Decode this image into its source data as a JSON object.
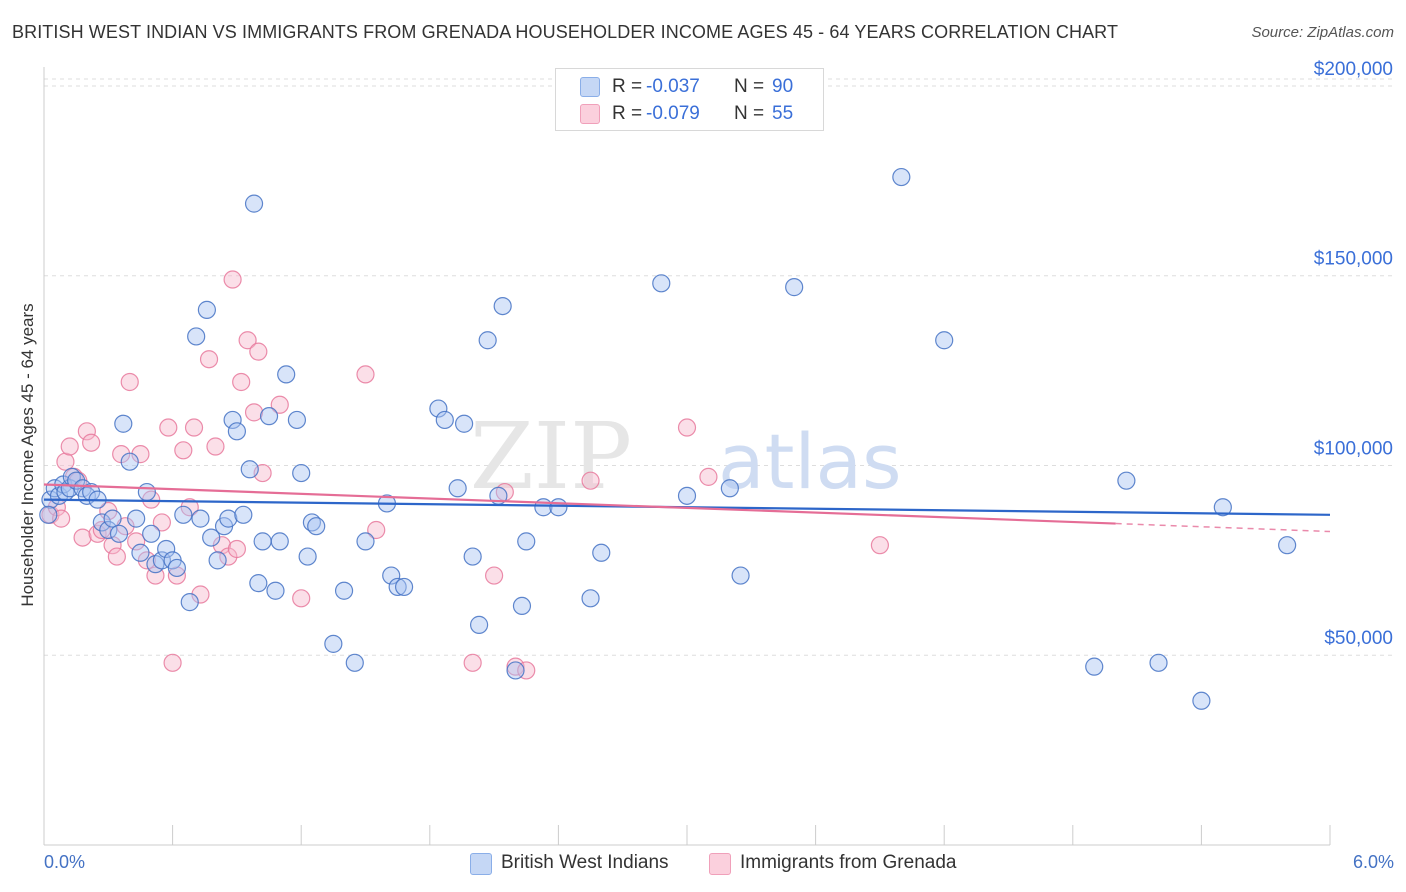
{
  "title": "BRITISH WEST INDIAN VS IMMIGRANTS FROM GRENADA HOUSEHOLDER INCOME AGES 45 - 64 YEARS CORRELATION CHART",
  "source": "Source: ZipAtlas.com",
  "watermark": {
    "zip": "ZIP",
    "atlas": "atlas"
  },
  "colors": {
    "blue": "#4472c4",
    "blue_fill": "#a9c4f2",
    "blue_line": "#2d66c9",
    "pink": "#e8799c",
    "pink_fill": "#f6b8cc",
    "pink_line": "#e56d96",
    "grid": "#dddddd",
    "value_text": "#3a6fd8"
  },
  "legend": {
    "series1": {
      "r_label": "R =",
      "r_value": "-0.037",
      "n_label": "N =",
      "n_value": "90"
    },
    "series2": {
      "r_label": "R =",
      "r_value": "-0.079",
      "n_label": "N =",
      "n_value": "55"
    }
  },
  "bottom_legend": {
    "series1": "British West Indians",
    "series2": "Immigrants from Grenada"
  },
  "chart_data": {
    "type": "scatter",
    "title": "BRITISH WEST INDIAN VS IMMIGRANTS FROM GRENADA HOUSEHOLDER INCOME AGES 45 - 64 YEARS CORRELATION CHART",
    "xlabel": "",
    "ylabel": "Householder Income Ages 45 - 64 years",
    "xlim": [
      0,
      6
    ],
    "ylim": [
      0,
      205000
    ],
    "x_tick_labels": [
      "0.0%",
      "6.0%"
    ],
    "y_ticks": [
      {
        "value": 50000,
        "label": "$50,000"
      },
      {
        "value": 100000,
        "label": "$100,000"
      },
      {
        "value": 150000,
        "label": "$150,000"
      },
      {
        "value": 200000,
        "label": "$200,000"
      }
    ],
    "grid": true,
    "series": [
      {
        "name": "British West Indians",
        "color": "#4472c4",
        "trend": {
          "x": [
            0,
            6
          ],
          "y": [
            91000,
            87000
          ]
        },
        "points": [
          [
            0.03,
            91000
          ],
          [
            0.05,
            94000
          ],
          [
            0.07,
            92000
          ],
          [
            0.09,
            95000
          ],
          [
            0.1,
            93000
          ],
          [
            0.12,
            94000
          ],
          [
            0.13,
            97000
          ],
          [
            0.15,
            96000
          ],
          [
            0.18,
            94000
          ],
          [
            0.2,
            92000
          ],
          [
            0.22,
            93000
          ],
          [
            0.25,
            91000
          ],
          [
            0.27,
            85000
          ],
          [
            0.3,
            83000
          ],
          [
            0.32,
            86000
          ],
          [
            0.35,
            82000
          ],
          [
            0.37,
            111000
          ],
          [
            0.4,
            101000
          ],
          [
            0.43,
            86000
          ],
          [
            0.45,
            77000
          ],
          [
            0.48,
            93000
          ],
          [
            0.5,
            82000
          ],
          [
            0.52,
            74000
          ],
          [
            0.55,
            75000
          ],
          [
            0.57,
            78000
          ],
          [
            0.6,
            75000
          ],
          [
            0.62,
            73000
          ],
          [
            0.65,
            87000
          ],
          [
            0.68,
            64000
          ],
          [
            0.71,
            134000
          ],
          [
            0.73,
            86000
          ],
          [
            0.76,
            141000
          ],
          [
            0.78,
            81000
          ],
          [
            0.81,
            75000
          ],
          [
            0.84,
            84000
          ],
          [
            0.86,
            86000
          ],
          [
            0.88,
            112000
          ],
          [
            0.9,
            109000
          ],
          [
            0.93,
            87000
          ],
          [
            0.96,
            99000
          ],
          [
            0.98,
            169000
          ],
          [
            1.0,
            69000
          ],
          [
            1.02,
            80000
          ],
          [
            1.05,
            113000
          ],
          [
            1.08,
            67000
          ],
          [
            1.1,
            80000
          ],
          [
            1.13,
            124000
          ],
          [
            1.18,
            112000
          ],
          [
            1.2,
            98000
          ],
          [
            1.23,
            76000
          ],
          [
            1.25,
            85000
          ],
          [
            1.27,
            84000
          ],
          [
            1.35,
            53000
          ],
          [
            1.4,
            67000
          ],
          [
            1.45,
            48000
          ],
          [
            1.5,
            80000
          ],
          [
            1.6,
            90000
          ],
          [
            1.62,
            71000
          ],
          [
            1.65,
            68000
          ],
          [
            1.68,
            68000
          ],
          [
            1.84,
            115000
          ],
          [
            1.87,
            112000
          ],
          [
            1.93,
            94000
          ],
          [
            1.96,
            111000
          ],
          [
            2.0,
            76000
          ],
          [
            2.03,
            58000
          ],
          [
            2.07,
            133000
          ],
          [
            2.12,
            92000
          ],
          [
            2.14,
            142000
          ],
          [
            2.2,
            46000
          ],
          [
            2.23,
            63000
          ],
          [
            2.25,
            80000
          ],
          [
            2.33,
            89000
          ],
          [
            2.4,
            89000
          ],
          [
            2.55,
            65000
          ],
          [
            2.6,
            77000
          ],
          [
            2.88,
            148000
          ],
          [
            3.0,
            92000
          ],
          [
            3.2,
            94000
          ],
          [
            3.25,
            71000
          ],
          [
            3.5,
            147000
          ],
          [
            4.0,
            176000
          ],
          [
            4.2,
            133000
          ],
          [
            4.9,
            47000
          ],
          [
            5.05,
            96000
          ],
          [
            5.2,
            48000
          ],
          [
            5.4,
            38000
          ],
          [
            5.5,
            89000
          ],
          [
            5.8,
            79000
          ],
          [
            0.02,
            87000
          ]
        ]
      },
      {
        "name": "Immigrants from Grenada",
        "color": "#e8799c",
        "trend": {
          "x": [
            0,
            5.0
          ],
          "y": [
            95000,
            84700
          ]
        },
        "trend_dashed": {
          "x": [
            5.0,
            6.0
          ],
          "y": [
            84700,
            82600
          ]
        },
        "points": [
          [
            0.03,
            87000
          ],
          [
            0.06,
            89000
          ],
          [
            0.08,
            86000
          ],
          [
            0.1,
            101000
          ],
          [
            0.12,
            105000
          ],
          [
            0.14,
            97000
          ],
          [
            0.16,
            96000
          ],
          [
            0.18,
            81000
          ],
          [
            0.2,
            109000
          ],
          [
            0.22,
            106000
          ],
          [
            0.25,
            82000
          ],
          [
            0.27,
            83000
          ],
          [
            0.3,
            88000
          ],
          [
            0.32,
            79000
          ],
          [
            0.34,
            76000
          ],
          [
            0.36,
            103000
          ],
          [
            0.38,
            84000
          ],
          [
            0.4,
            122000
          ],
          [
            0.43,
            80000
          ],
          [
            0.45,
            103000
          ],
          [
            0.48,
            75000
          ],
          [
            0.5,
            91000
          ],
          [
            0.52,
            71000
          ],
          [
            0.55,
            85000
          ],
          [
            0.58,
            110000
          ],
          [
            0.6,
            48000
          ],
          [
            0.62,
            71000
          ],
          [
            0.65,
            104000
          ],
          [
            0.68,
            89000
          ],
          [
            0.7,
            110000
          ],
          [
            0.73,
            66000
          ],
          [
            0.77,
            128000
          ],
          [
            0.8,
            105000
          ],
          [
            0.83,
            79000
          ],
          [
            0.86,
            76000
          ],
          [
            0.88,
            149000
          ],
          [
            0.9,
            78000
          ],
          [
            0.92,
            122000
          ],
          [
            0.95,
            133000
          ],
          [
            0.98,
            114000
          ],
          [
            1.0,
            130000
          ],
          [
            1.02,
            98000
          ],
          [
            1.1,
            116000
          ],
          [
            1.2,
            65000
          ],
          [
            1.5,
            124000
          ],
          [
            1.55,
            83000
          ],
          [
            2.0,
            48000
          ],
          [
            2.1,
            71000
          ],
          [
            2.15,
            93000
          ],
          [
            2.2,
            47000
          ],
          [
            2.25,
            46000
          ],
          [
            2.55,
            96000
          ],
          [
            3.0,
            110000
          ],
          [
            3.1,
            97000
          ],
          [
            3.9,
            79000
          ]
        ]
      }
    ]
  }
}
